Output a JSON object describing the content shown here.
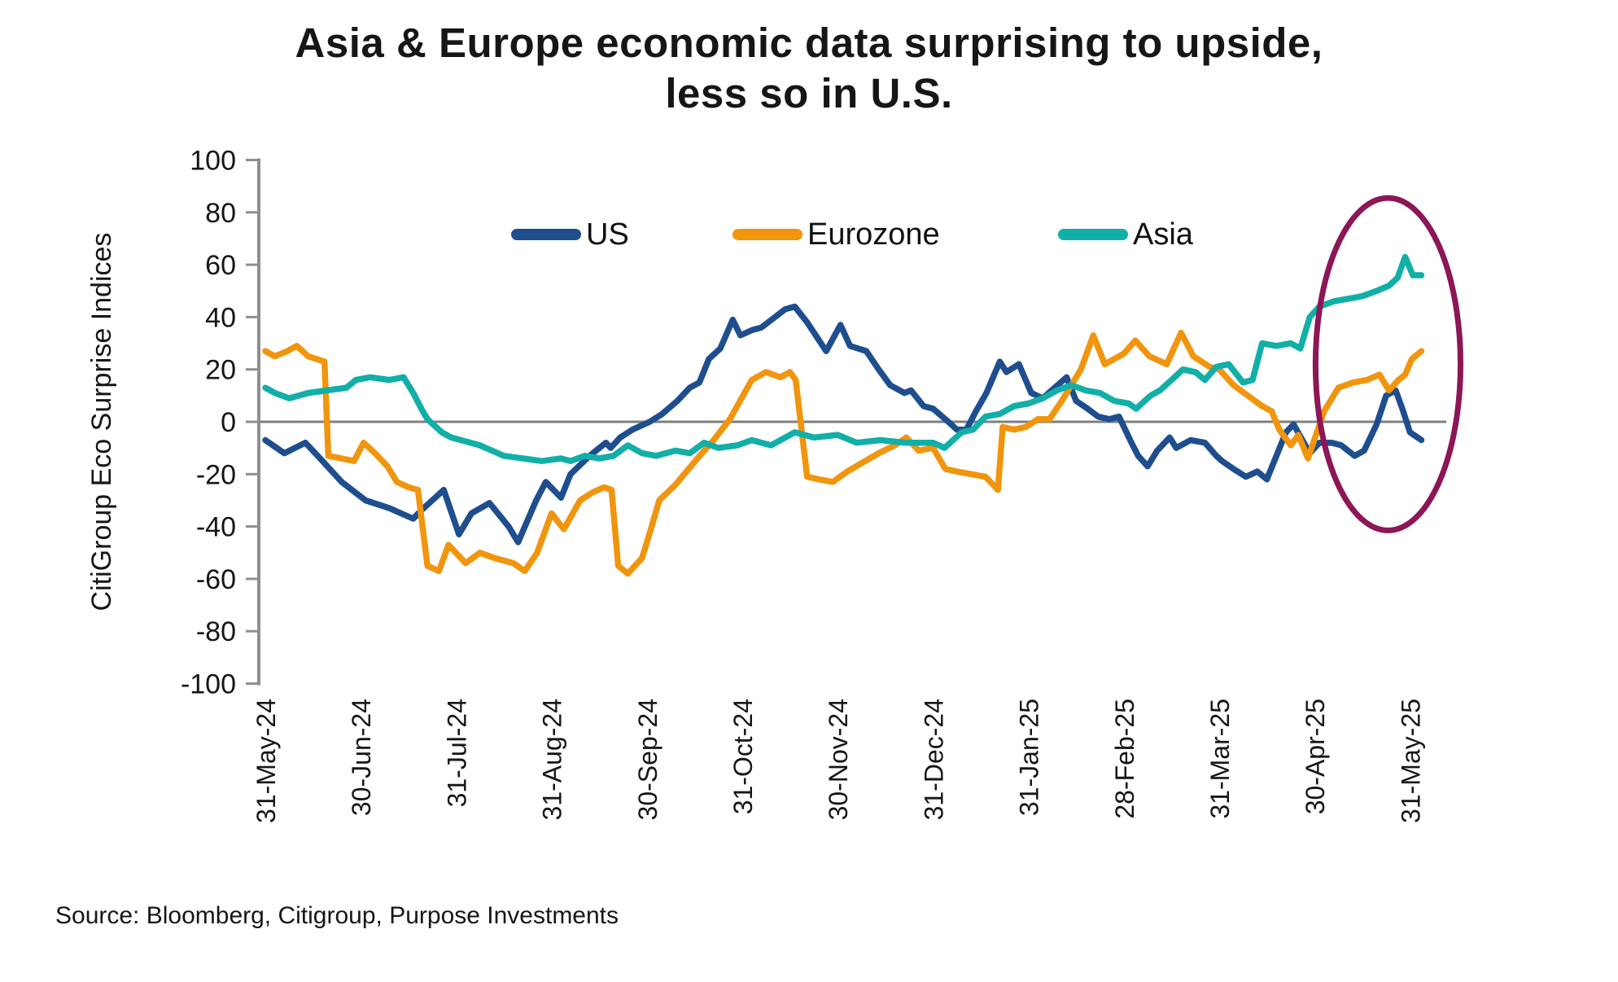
{
  "title": {
    "line1": "Asia & Europe economic data surprising to upside,",
    "line2": "less so in U.S."
  },
  "y_axis": {
    "label": "CitiGroup Eco Surprise Indices"
  },
  "source": {
    "text": "Source: Bloomberg, Citigroup, Purpose Investments"
  },
  "legend": {
    "items": [
      {
        "label": "US"
      },
      {
        "label": "Eurozone"
      },
      {
        "label": "Asia"
      }
    ]
  },
  "annotation": {
    "label": "highlight-ellipse",
    "color": "#8C1656",
    "center_month": 11.77,
    "center_value": 22,
    "radius_months": 0.76,
    "radius_value": 63.5
  },
  "chart_data": {
    "type": "line",
    "title": "Asia & Europe economic data surprising to upside, less so in U.S.",
    "ylabel": "CitiGroup Eco Surprise Indices",
    "ylim": [
      -100,
      100
    ],
    "y_ticks": [
      100,
      80,
      60,
      40,
      20,
      0,
      -20,
      -40,
      -60,
      -80,
      -100
    ],
    "x_tick_labels": [
      "31-May-24",
      "30-Jun-24",
      "31-Jul-24",
      "31-Aug-24",
      "30-Sep-24",
      "31-Oct-24",
      "30-Nov-24",
      "31-Dec-24",
      "31-Jan-25",
      "28-Feb-25",
      "31-Mar-25",
      "30-Apr-25",
      "31-May-25"
    ],
    "x_unit": "months since 31-May-2024 (0 = 31-May-24, 12 = 31-May-25)",
    "grid": "zero baseline only",
    "legend_position": "top-inside",
    "zero_line_color": "#7F7F7F",
    "axis_color": "#8F8F8F",
    "series": [
      {
        "name": "US",
        "color": "#1F4E8F",
        "points": [
          [
            0,
            -7
          ],
          [
            0.2,
            -12
          ],
          [
            0.42,
            -8
          ],
          [
            0.6,
            -15
          ],
          [
            0.8,
            -23
          ],
          [
            1.05,
            -30
          ],
          [
            1.3,
            -33
          ],
          [
            1.55,
            -37
          ],
          [
            1.63,
            -34
          ],
          [
            1.87,
            -26
          ],
          [
            2.03,
            -43
          ],
          [
            2.16,
            -35
          ],
          [
            2.35,
            -31
          ],
          [
            2.55,
            -40
          ],
          [
            2.65,
            -46
          ],
          [
            2.84,
            -30
          ],
          [
            2.94,
            -23
          ],
          [
            3.1,
            -29
          ],
          [
            3.2,
            -20
          ],
          [
            3.4,
            -13
          ],
          [
            3.57,
            -8
          ],
          [
            3.62,
            -10
          ],
          [
            3.72,
            -6
          ],
          [
            3.85,
            -3
          ],
          [
            4.03,
            0
          ],
          [
            4.16,
            3
          ],
          [
            4.32,
            8
          ],
          [
            4.45,
            13
          ],
          [
            4.55,
            15
          ],
          [
            4.65,
            24
          ],
          [
            4.77,
            28
          ],
          [
            4.9,
            39
          ],
          [
            4.98,
            33
          ],
          [
            5.1,
            35
          ],
          [
            5.2,
            36
          ],
          [
            5.45,
            43
          ],
          [
            5.55,
            44
          ],
          [
            5.68,
            38
          ],
          [
            5.88,
            27
          ],
          [
            6.03,
            37
          ],
          [
            6.13,
            29
          ],
          [
            6.3,
            27
          ],
          [
            6.43,
            20
          ],
          [
            6.55,
            14
          ],
          [
            6.7,
            11
          ],
          [
            6.77,
            12
          ],
          [
            6.9,
            6
          ],
          [
            7.0,
            5
          ],
          [
            7.16,
            0
          ],
          [
            7.25,
            -3
          ],
          [
            7.35,
            -3
          ],
          [
            7.45,
            4
          ],
          [
            7.56,
            11
          ],
          [
            7.7,
            23
          ],
          [
            7.77,
            19
          ],
          [
            7.9,
            22
          ],
          [
            8.03,
            11
          ],
          [
            8.15,
            9
          ],
          [
            8.4,
            17
          ],
          [
            8.5,
            8
          ],
          [
            8.62,
            5
          ],
          [
            8.73,
            2
          ],
          [
            8.85,
            1
          ],
          [
            8.95,
            2
          ],
          [
            9.08,
            -8
          ],
          [
            9.15,
            -13
          ],
          [
            9.25,
            -17
          ],
          [
            9.35,
            -11
          ],
          [
            9.48,
            -6
          ],
          [
            9.55,
            -10
          ],
          [
            9.7,
            -7
          ],
          [
            9.85,
            -8
          ],
          [
            9.97,
            -13
          ],
          [
            10.03,
            -15
          ],
          [
            10.15,
            -18
          ],
          [
            10.28,
            -21
          ],
          [
            10.4,
            -19
          ],
          [
            10.5,
            -22
          ],
          [
            10.6,
            -13
          ],
          [
            10.7,
            -4
          ],
          [
            10.78,
            -1
          ],
          [
            10.95,
            -12
          ],
          [
            11.05,
            -8
          ],
          [
            11.18,
            -8
          ],
          [
            11.28,
            -9
          ],
          [
            11.42,
            -13
          ],
          [
            11.52,
            -11
          ],
          [
            11.65,
            -1
          ],
          [
            11.75,
            10
          ],
          [
            11.85,
            12
          ],
          [
            11.92,
            5
          ],
          [
            12.0,
            -4
          ],
          [
            12.12,
            -7
          ]
        ]
      },
      {
        "name": "Eurozone",
        "color": "#F0950D",
        "points": [
          [
            0,
            27
          ],
          [
            0.1,
            25
          ],
          [
            0.23,
            27
          ],
          [
            0.33,
            29
          ],
          [
            0.45,
            25
          ],
          [
            0.62,
            23
          ],
          [
            0.66,
            -13
          ],
          [
            0.8,
            -14
          ],
          [
            0.93,
            -15
          ],
          [
            1.03,
            -8
          ],
          [
            1.15,
            -12
          ],
          [
            1.28,
            -17
          ],
          [
            1.38,
            -23
          ],
          [
            1.5,
            -25
          ],
          [
            1.6,
            -26
          ],
          [
            1.7,
            -55
          ],
          [
            1.82,
            -57
          ],
          [
            1.92,
            -47
          ],
          [
            2.1,
            -54
          ],
          [
            2.25,
            -50
          ],
          [
            2.4,
            -52
          ],
          [
            2.6,
            -54
          ],
          [
            2.72,
            -57
          ],
          [
            2.85,
            -50
          ],
          [
            3.0,
            -35
          ],
          [
            3.13,
            -41
          ],
          [
            3.3,
            -30
          ],
          [
            3.43,
            -27
          ],
          [
            3.55,
            -25
          ],
          [
            3.63,
            -26
          ],
          [
            3.7,
            -55
          ],
          [
            3.8,
            -58
          ],
          [
            3.95,
            -52
          ],
          [
            4.05,
            -40
          ],
          [
            4.13,
            -30
          ],
          [
            4.3,
            -24
          ],
          [
            4.53,
            -14
          ],
          [
            4.7,
            -7
          ],
          [
            4.87,
            1
          ],
          [
            5.1,
            16
          ],
          [
            5.25,
            19
          ],
          [
            5.4,
            17
          ],
          [
            5.5,
            19
          ],
          [
            5.56,
            16
          ],
          [
            5.68,
            -21
          ],
          [
            5.8,
            -22
          ],
          [
            5.95,
            -23
          ],
          [
            6.1,
            -19
          ],
          [
            6.43,
            -12
          ],
          [
            6.6,
            -9
          ],
          [
            6.72,
            -6
          ],
          [
            6.85,
            -11
          ],
          [
            7.0,
            -10
          ],
          [
            7.13,
            -18
          ],
          [
            7.25,
            -19
          ],
          [
            7.4,
            -20
          ],
          [
            7.55,
            -21
          ],
          [
            7.68,
            -26
          ],
          [
            7.73,
            -2
          ],
          [
            7.85,
            -3
          ],
          [
            7.97,
            -2
          ],
          [
            8.1,
            1
          ],
          [
            8.22,
            1
          ],
          [
            8.35,
            8
          ],
          [
            8.55,
            20
          ],
          [
            8.68,
            33
          ],
          [
            8.8,
            22
          ],
          [
            9.0,
            26
          ],
          [
            9.12,
            31
          ],
          [
            9.27,
            25
          ],
          [
            9.45,
            22
          ],
          [
            9.6,
            34
          ],
          [
            9.73,
            25
          ],
          [
            9.9,
            21
          ],
          [
            10.0,
            20
          ],
          [
            10.15,
            14
          ],
          [
            10.3,
            10
          ],
          [
            10.45,
            6
          ],
          [
            10.55,
            4
          ],
          [
            10.63,
            -3
          ],
          [
            10.75,
            -9
          ],
          [
            10.83,
            -5
          ],
          [
            10.93,
            -14
          ],
          [
            11.1,
            4
          ],
          [
            11.25,
            13
          ],
          [
            11.4,
            15
          ],
          [
            11.55,
            16
          ],
          [
            11.68,
            18
          ],
          [
            11.78,
            12
          ],
          [
            11.88,
            16
          ],
          [
            11.95,
            18
          ],
          [
            12.02,
            24
          ],
          [
            12.12,
            27
          ]
        ]
      },
      {
        "name": "Asia",
        "color": "#11AFA7",
        "points": [
          [
            0,
            13
          ],
          [
            0.1,
            11
          ],
          [
            0.25,
            9
          ],
          [
            0.45,
            11
          ],
          [
            0.65,
            12
          ],
          [
            0.85,
            13
          ],
          [
            0.95,
            16
          ],
          [
            1.1,
            17
          ],
          [
            1.3,
            16
          ],
          [
            1.45,
            17
          ],
          [
            1.55,
            11
          ],
          [
            1.65,
            4
          ],
          [
            1.7,
            1
          ],
          [
            1.85,
            -4
          ],
          [
            1.95,
            -6
          ],
          [
            2.25,
            -9
          ],
          [
            2.5,
            -13
          ],
          [
            2.7,
            -14
          ],
          [
            2.9,
            -15
          ],
          [
            3.1,
            -14
          ],
          [
            3.2,
            -15
          ],
          [
            3.35,
            -13
          ],
          [
            3.5,
            -14
          ],
          [
            3.65,
            -13
          ],
          [
            3.8,
            -9
          ],
          [
            3.95,
            -12
          ],
          [
            4.1,
            -13
          ],
          [
            4.3,
            -11
          ],
          [
            4.45,
            -12
          ],
          [
            4.6,
            -8
          ],
          [
            4.75,
            -10
          ],
          [
            4.95,
            -9
          ],
          [
            5.1,
            -7
          ],
          [
            5.3,
            -9
          ],
          [
            5.55,
            -4
          ],
          [
            5.75,
            -6
          ],
          [
            6.0,
            -5
          ],
          [
            6.2,
            -8
          ],
          [
            6.45,
            -7
          ],
          [
            6.7,
            -8
          ],
          [
            7.0,
            -8
          ],
          [
            7.12,
            -10
          ],
          [
            7.3,
            -4
          ],
          [
            7.42,
            -3
          ],
          [
            7.55,
            2
          ],
          [
            7.7,
            3
          ],
          [
            7.85,
            6
          ],
          [
            8.0,
            7
          ],
          [
            8.15,
            9
          ],
          [
            8.3,
            12
          ],
          [
            8.45,
            14
          ],
          [
            8.6,
            12
          ],
          [
            8.75,
            11
          ],
          [
            8.9,
            8
          ],
          [
            9.05,
            7
          ],
          [
            9.13,
            5
          ],
          [
            9.28,
            10
          ],
          [
            9.38,
            12
          ],
          [
            9.5,
            16
          ],
          [
            9.62,
            20
          ],
          [
            9.75,
            19
          ],
          [
            9.85,
            16
          ],
          [
            9.97,
            21
          ],
          [
            10.1,
            22
          ],
          [
            10.25,
            15
          ],
          [
            10.35,
            16
          ],
          [
            10.45,
            30
          ],
          [
            10.6,
            29
          ],
          [
            10.75,
            30
          ],
          [
            10.85,
            28
          ],
          [
            10.95,
            40
          ],
          [
            11.05,
            44
          ],
          [
            11.2,
            46
          ],
          [
            11.35,
            47
          ],
          [
            11.5,
            48
          ],
          [
            11.65,
            50
          ],
          [
            11.78,
            52
          ],
          [
            11.87,
            55
          ],
          [
            11.95,
            63
          ],
          [
            12.03,
            56
          ],
          [
            12.12,
            56
          ]
        ]
      }
    ]
  }
}
